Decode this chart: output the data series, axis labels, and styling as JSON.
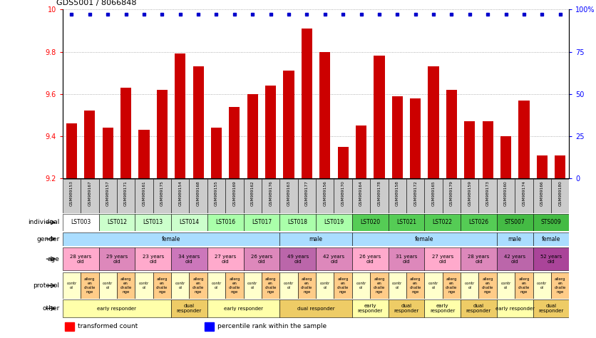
{
  "title": "GDS5001 / 8066848",
  "samples": [
    "GSM989153",
    "GSM989167",
    "GSM989157",
    "GSM989171",
    "GSM989161",
    "GSM989175",
    "GSM989154",
    "GSM989168",
    "GSM989155",
    "GSM989169",
    "GSM989162",
    "GSM989176",
    "GSM989163",
    "GSM989177",
    "GSM989156",
    "GSM989170",
    "GSM989164",
    "GSM989178",
    "GSM989158",
    "GSM989172",
    "GSM989165",
    "GSM989179",
    "GSM989159",
    "GSM989173",
    "GSM989160",
    "GSM989174",
    "GSM989166",
    "GSM989180"
  ],
  "bar_values": [
    9.46,
    9.52,
    9.44,
    9.63,
    9.43,
    9.62,
    9.79,
    9.73,
    9.44,
    9.54,
    9.6,
    9.64,
    9.71,
    9.91,
    9.8,
    9.35,
    9.45,
    9.78,
    9.59,
    9.58,
    9.73,
    9.62,
    9.47,
    9.47,
    9.4,
    9.57,
    9.31,
    9.31
  ],
  "bar_color": "#cc0000",
  "percentile_color": "#0000cc",
  "ylim": [
    9.2,
    10.0
  ],
  "yticks_left": [
    9.2,
    9.4,
    9.6,
    9.8,
    10.0
  ],
  "ytick_labels_left": [
    "9.2",
    "9.4",
    "9.6",
    "9.8",
    "10"
  ],
  "yticks_right": [
    0,
    25,
    50,
    75,
    100
  ],
  "ytick_labels_right": [
    "0",
    "25",
    "50",
    "75",
    "100%"
  ],
  "sample_bg": "#cccccc",
  "indiv_spans": [
    {
      "label": "LST003",
      "start": 0,
      "end": 2,
      "color": "#ffffff"
    },
    {
      "label": "LST012",
      "start": 2,
      "end": 4,
      "color": "#ccffcc"
    },
    {
      "label": "LST013",
      "start": 4,
      "end": 6,
      "color": "#ccffcc"
    },
    {
      "label": "LST014",
      "start": 6,
      "end": 8,
      "color": "#ccffcc"
    },
    {
      "label": "LST016",
      "start": 8,
      "end": 10,
      "color": "#aaffaa"
    },
    {
      "label": "LST017",
      "start": 10,
      "end": 12,
      "color": "#aaffaa"
    },
    {
      "label": "LST018",
      "start": 12,
      "end": 14,
      "color": "#aaffaa"
    },
    {
      "label": "LST019",
      "start": 14,
      "end": 16,
      "color": "#aaffaa"
    },
    {
      "label": "LST020",
      "start": 16,
      "end": 18,
      "color": "#55cc55"
    },
    {
      "label": "LST021",
      "start": 18,
      "end": 20,
      "color": "#55cc55"
    },
    {
      "label": "LST022",
      "start": 20,
      "end": 22,
      "color": "#55cc55"
    },
    {
      "label": "LST026",
      "start": 22,
      "end": 24,
      "color": "#55cc55"
    },
    {
      "label": "STS007",
      "start": 24,
      "end": 26,
      "color": "#44bb44"
    },
    {
      "label": "STS009",
      "start": 26,
      "end": 28,
      "color": "#44bb44"
    }
  ],
  "gender_spans": [
    {
      "label": "female",
      "start": 0,
      "end": 12,
      "color": "#aaddff"
    },
    {
      "label": "male",
      "start": 12,
      "end": 16,
      "color": "#aaddff"
    },
    {
      "label": "female",
      "start": 16,
      "end": 24,
      "color": "#aaddff"
    },
    {
      "label": "male",
      "start": 24,
      "end": 26,
      "color": "#aaddff"
    },
    {
      "label": "female",
      "start": 26,
      "end": 28,
      "color": "#aaddff"
    }
  ],
  "age_spans": [
    {
      "label": "28 years\nold",
      "start": 0,
      "end": 2,
      "color": "#ffaacc"
    },
    {
      "label": "29 years\nold",
      "start": 2,
      "end": 4,
      "color": "#dd88bb"
    },
    {
      "label": "23 years\nold",
      "start": 4,
      "end": 6,
      "color": "#ffaacc"
    },
    {
      "label": "34 years\nold",
      "start": 6,
      "end": 8,
      "color": "#cc77bb"
    },
    {
      "label": "27 years\nold",
      "start": 8,
      "end": 10,
      "color": "#ffaacc"
    },
    {
      "label": "26 years\nold",
      "start": 10,
      "end": 12,
      "color": "#dd88bb"
    },
    {
      "label": "49 years\nold",
      "start": 12,
      "end": 14,
      "color": "#bb66aa"
    },
    {
      "label": "42 years\nold",
      "start": 14,
      "end": 16,
      "color": "#dd88bb"
    },
    {
      "label": "26 years\nold",
      "start": 16,
      "end": 18,
      "color": "#ffaacc"
    },
    {
      "label": "31 years\nold",
      "start": 18,
      "end": 20,
      "color": "#dd88bb"
    },
    {
      "label": "27 years\nold",
      "start": 20,
      "end": 22,
      "color": "#ffaacc"
    },
    {
      "label": "28 years\nold",
      "start": 22,
      "end": 24,
      "color": "#dd88bb"
    },
    {
      "label": "42 years\nold",
      "start": 24,
      "end": 26,
      "color": "#bb66aa"
    },
    {
      "label": "52 years\nold",
      "start": 26,
      "end": 28,
      "color": "#aa4499"
    }
  ],
  "protocol_spans": [
    {
      "label": "contr\nol",
      "start": 0,
      "end": 1,
      "color": "#ffffcc"
    },
    {
      "label": "allerg\nen\nchalle\nnge",
      "start": 1,
      "end": 2,
      "color": "#ffcc88"
    },
    {
      "label": "contr\nol",
      "start": 2,
      "end": 3,
      "color": "#ffffcc"
    },
    {
      "label": "allerg\nen\nchalle\nnge",
      "start": 3,
      "end": 4,
      "color": "#ffcc88"
    },
    {
      "label": "contr\nol",
      "start": 4,
      "end": 5,
      "color": "#ffffcc"
    },
    {
      "label": "allerg\nen\nchalle\nnge",
      "start": 5,
      "end": 6,
      "color": "#ffcc88"
    },
    {
      "label": "contr\nol",
      "start": 6,
      "end": 7,
      "color": "#ffffcc"
    },
    {
      "label": "allerg\nen\nchalle\nnge",
      "start": 7,
      "end": 8,
      "color": "#ffcc88"
    },
    {
      "label": "contr\nol",
      "start": 8,
      "end": 9,
      "color": "#ffffcc"
    },
    {
      "label": "allerg\nen\nchalle\nnge",
      "start": 9,
      "end": 10,
      "color": "#ffcc88"
    },
    {
      "label": "contr\nol",
      "start": 10,
      "end": 11,
      "color": "#ffffcc"
    },
    {
      "label": "allerg\nen\nchalle\nnge",
      "start": 11,
      "end": 12,
      "color": "#ffcc88"
    },
    {
      "label": "contr\nol",
      "start": 12,
      "end": 13,
      "color": "#ffffcc"
    },
    {
      "label": "allerg\nen\nchalle\nnge",
      "start": 13,
      "end": 14,
      "color": "#ffcc88"
    },
    {
      "label": "contr\nol",
      "start": 14,
      "end": 15,
      "color": "#ffffcc"
    },
    {
      "label": "allerg\nen\nchalle\nnge",
      "start": 15,
      "end": 16,
      "color": "#ffcc88"
    },
    {
      "label": "contr\nol",
      "start": 16,
      "end": 17,
      "color": "#ffffcc"
    },
    {
      "label": "allerg\nen\nchalle\nnge",
      "start": 17,
      "end": 18,
      "color": "#ffcc88"
    },
    {
      "label": "contr\nol",
      "start": 18,
      "end": 19,
      "color": "#ffffcc"
    },
    {
      "label": "allerg\nen\nchalle\nnge",
      "start": 19,
      "end": 20,
      "color": "#ffcc88"
    },
    {
      "label": "contr\nol",
      "start": 20,
      "end": 21,
      "color": "#ffffcc"
    },
    {
      "label": "allerg\nen\nchalle\nnge",
      "start": 21,
      "end": 22,
      "color": "#ffcc88"
    },
    {
      "label": "contr\nol",
      "start": 22,
      "end": 23,
      "color": "#ffffcc"
    },
    {
      "label": "allerg\nen\nchalle\nnge",
      "start": 23,
      "end": 24,
      "color": "#ffcc88"
    },
    {
      "label": "contr\nol",
      "start": 24,
      "end": 25,
      "color": "#ffffcc"
    },
    {
      "label": "allerg\nen\nchalle\nnge",
      "start": 25,
      "end": 26,
      "color": "#ffcc88"
    },
    {
      "label": "contr\nol",
      "start": 26,
      "end": 27,
      "color": "#ffffcc"
    },
    {
      "label": "allerg\nen\nchalle\nnge",
      "start": 27,
      "end": 28,
      "color": "#ffcc88"
    }
  ],
  "other_spans": [
    {
      "label": "early responder",
      "start": 0,
      "end": 6,
      "color": "#ffffaa"
    },
    {
      "label": "dual\nresponder",
      "start": 6,
      "end": 8,
      "color": "#eecc66"
    },
    {
      "label": "early responder",
      "start": 8,
      "end": 12,
      "color": "#ffffaa"
    },
    {
      "label": "dual responder",
      "start": 12,
      "end": 16,
      "color": "#eecc66"
    },
    {
      "label": "early\nresponder",
      "start": 16,
      "end": 18,
      "color": "#ffffaa"
    },
    {
      "label": "dual\nresponder",
      "start": 18,
      "end": 20,
      "color": "#eecc66"
    },
    {
      "label": "early\nresponder",
      "start": 20,
      "end": 22,
      "color": "#ffffaa"
    },
    {
      "label": "dual\nresponder",
      "start": 22,
      "end": 24,
      "color": "#eecc66"
    },
    {
      "label": "early responder",
      "start": 24,
      "end": 26,
      "color": "#ffffaa"
    },
    {
      "label": "dual\nresponder",
      "start": 26,
      "end": 28,
      "color": "#eecc66"
    }
  ],
  "row_labels": [
    "individual",
    "gender",
    "age",
    "protocol",
    "other"
  ]
}
